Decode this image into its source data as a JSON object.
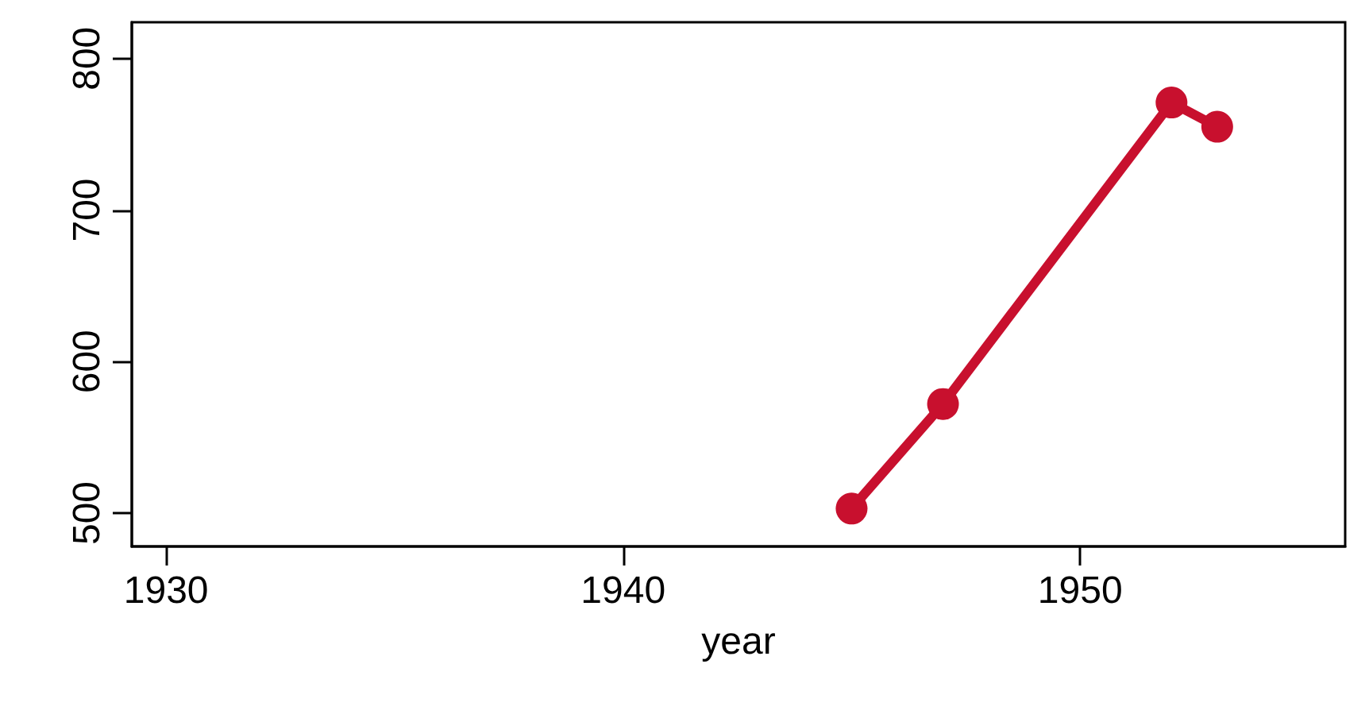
{
  "chart_data": {
    "type": "line",
    "xlabel": "year",
    "x": [
      1945,
      1947,
      1952,
      1953
    ],
    "series": [
      {
        "color": "#c8102e",
        "values": [
          503,
          572,
          771,
          755
        ]
      }
    ],
    "xlim": [
      1929.25,
      1955.8
    ],
    "xticks": [
      1930,
      1940,
      1950
    ],
    "ylim": [
      478,
      824
    ],
    "yticks": [
      500,
      600,
      700,
      800
    ],
    "grid": false,
    "legend": false,
    "marker": "circle",
    "line_style": "solid"
  }
}
